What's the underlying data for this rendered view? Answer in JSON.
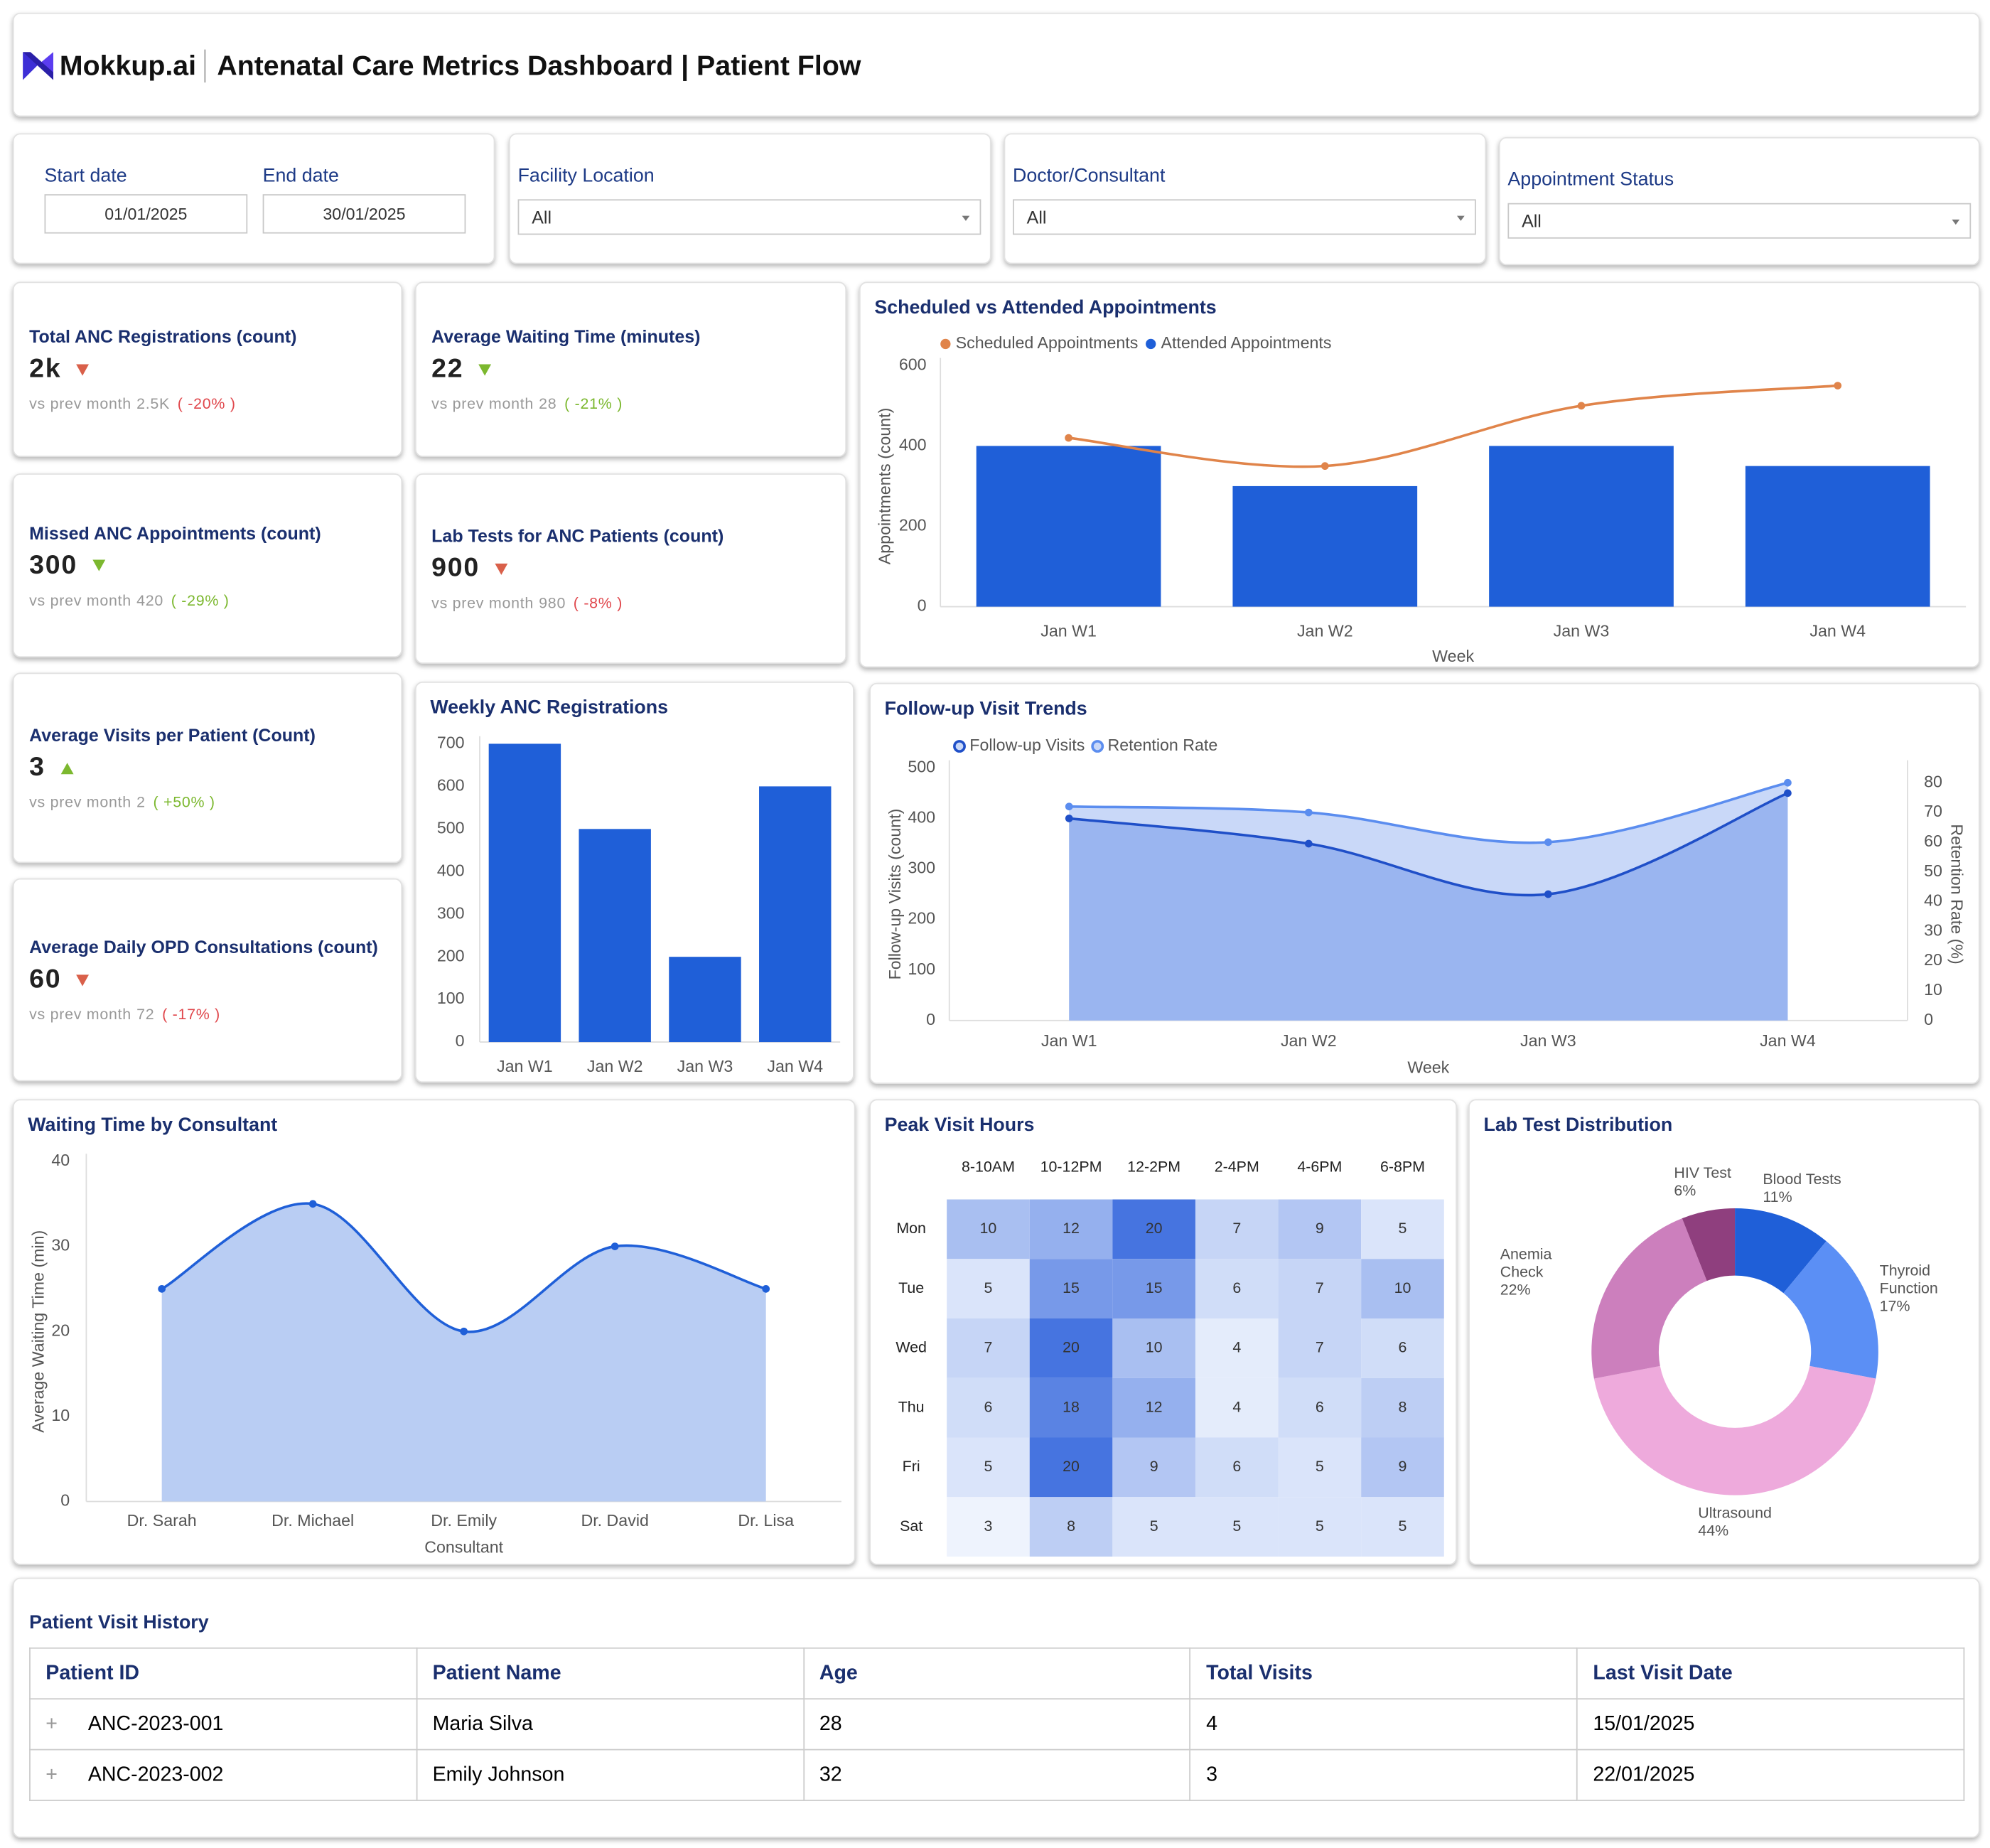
{
  "header": {
    "brand": "Mokkup.ai",
    "title": "Antenatal Care Metrics Dashboard | Patient Flow"
  },
  "filters": {
    "start_date": {
      "label": "Start date",
      "value": "01/01/2025"
    },
    "end_date": {
      "label": "End date",
      "value": "30/01/2025"
    },
    "dropdowns": [
      {
        "label": "Facility Location",
        "value": "All"
      },
      {
        "label": "Doctor/Consultant",
        "value": "All"
      },
      {
        "label": "Appointment Status",
        "value": "All"
      }
    ]
  },
  "kpis": [
    {
      "title": "Total ANC Registrations (count)",
      "value": "2k",
      "trend": "down",
      "trend_color": "#d9604a",
      "prev_label": "vs prev month",
      "prev": "2.5K",
      "change": "( -20% )",
      "change_color": "#e0474c"
    },
    {
      "title": "Average Waiting Time (minutes)",
      "value": 22,
      "trend": "down",
      "trend_color": "#7cb82f",
      "prev_label": "vs prev month",
      "prev": 28,
      "change": "( -21% )",
      "change_color": "#7cb82f"
    },
    {
      "title": "Missed ANC Appointments (count)",
      "value": 300,
      "trend": "down",
      "trend_color": "#7cb82f",
      "prev_label": "vs prev month",
      "prev": 420,
      "change": "( -29% )",
      "change_color": "#7cb82f"
    },
    {
      "title": "Lab Tests for ANC Patients (count)",
      "value": 900,
      "trend": "down",
      "trend_color": "#d9604a",
      "prev_label": "vs prev month",
      "prev": 980,
      "change": "( -8% )",
      "change_color": "#e0474c"
    },
    {
      "title": "Average Visits per Patient (Count)",
      "value": 3,
      "trend": "up",
      "trend_color": "#7cb82f",
      "prev_label": "vs prev month",
      "prev": 2,
      "change": "( +50% )",
      "change_color": "#7cb82f"
    },
    {
      "title": "Average Daily OPD Consultations (count)",
      "value": 60,
      "trend": "down",
      "trend_color": "#d9604a",
      "prev_label": "vs prev month",
      "prev": 72,
      "change": "( -17% )",
      "change_color": "#e0474c"
    }
  ],
  "chart_data": [
    {
      "type": "bar",
      "title": "Scheduled vs Attended Appointments",
      "categories": [
        "Jan W1",
        "Jan W2",
        "Jan W3",
        "Jan W4"
      ],
      "series": [
        {
          "name": "Scheduled Appointments",
          "kind": "line",
          "color": "#e0844a",
          "values": [
            420,
            350,
            500,
            550
          ]
        },
        {
          "name": "Attended Appointments",
          "kind": "bar",
          "color": "#1f5fd8",
          "values": [
            400,
            300,
            400,
            350
          ]
        }
      ],
      "ylim": [
        0,
        600
      ],
      "yticks": [
        0,
        200,
        400,
        600
      ],
      "xlabel": "Week",
      "ylabel": "Appointments (count)",
      "grid": false
    },
    {
      "type": "bar",
      "title": "Weekly ANC Registrations",
      "categories": [
        "Jan W1",
        "Jan W2",
        "Jan W3",
        "Jan W4"
      ],
      "values": [
        700,
        500,
        200,
        600
      ],
      "color": "#1f5fd8",
      "ylim": [
        0,
        700
      ],
      "yticks": [
        0,
        100,
        200,
        300,
        400,
        500,
        600,
        700
      ],
      "grid": false
    },
    {
      "type": "area",
      "title": "Follow-up Visit Trends",
      "categories": [
        "Jan W1",
        "Jan W2",
        "Jan W3",
        "Jan W4"
      ],
      "series": [
        {
          "name": "Follow-up Visits",
          "color": "#1f4fc8",
          "fill": "#9ab5f0",
          "values": [
            400,
            350,
            250,
            450
          ]
        },
        {
          "name": "Retention Rate",
          "color": "#5b8def",
          "fill": "#c9d8f8",
          "axis": "y2",
          "values": [
            72,
            70,
            60,
            80
          ]
        }
      ],
      "ylim": [
        0,
        500
      ],
      "yticks": [
        0,
        100,
        200,
        300,
        400,
        500
      ],
      "y2lim": [
        0,
        85
      ],
      "y2ticks": [
        0,
        10,
        20,
        30,
        40,
        50,
        60,
        70,
        80
      ],
      "xlabel": "Week",
      "ylabel": "Follow-up Visits (count)",
      "y2label": "Retention Rate (%)"
    },
    {
      "type": "area",
      "title": "Waiting Time by Consultant",
      "categories": [
        "Dr. Sarah",
        "Dr. Michael",
        "Dr. Emily",
        "Dr. David",
        "Dr. Lisa"
      ],
      "values": [
        25,
        35,
        20,
        30,
        25
      ],
      "color": "#1f5fd8",
      "fill": "#b9cdf3",
      "ylim": [
        0,
        40
      ],
      "yticks": [
        0,
        10,
        20,
        30,
        40
      ],
      "xlabel": "Consultant",
      "ylabel": "Average Waiting Time (min)"
    },
    {
      "type": "heatmap",
      "title": "Peak Visit Hours",
      "columns": [
        "8-10AM",
        "10-12PM",
        "12-2PM",
        "2-4PM",
        "4-6PM",
        "6-8PM"
      ],
      "rows": [
        "Mon",
        "Tue",
        "Wed",
        "Thu",
        "Fri",
        "Sat"
      ],
      "values": [
        [
          10,
          12,
          20,
          7,
          9,
          5
        ],
        [
          5,
          15,
          15,
          6,
          7,
          10
        ],
        [
          7,
          20,
          10,
          4,
          7,
          6
        ],
        [
          6,
          18,
          12,
          4,
          6,
          8
        ],
        [
          5,
          20,
          9,
          6,
          5,
          9
        ],
        [
          3,
          8,
          5,
          5,
          5,
          5
        ]
      ],
      "color_scale": [
        "#eef3fd",
        "#4674e0"
      ]
    },
    {
      "type": "donut",
      "title": "Lab Test Distribution",
      "categories": [
        "Blood Tests",
        "Thyroid Function",
        "Ultrasound",
        "Anemia Check",
        "HIV Test"
      ],
      "values": [
        11,
        17,
        44,
        22,
        6
      ],
      "value_labels": [
        "11%",
        "17%",
        "44%",
        "22%",
        "6%"
      ],
      "colors": [
        "#1f5fd8",
        "#5b8ff5",
        "#eeaadc",
        "#cc7fbd",
        "#8f3f7e"
      ]
    }
  ],
  "table": {
    "title": "Patient Visit History",
    "columns": [
      "Patient ID",
      "Patient Name",
      "Age",
      "Total Visits",
      "Last Visit Date"
    ],
    "rows": [
      [
        "ANC-2023-001",
        "Maria Silva",
        28,
        4,
        "15/01/2025"
      ],
      [
        "ANC-2023-002",
        "Emily Johnson",
        32,
        3,
        "22/01/2025"
      ]
    ]
  }
}
